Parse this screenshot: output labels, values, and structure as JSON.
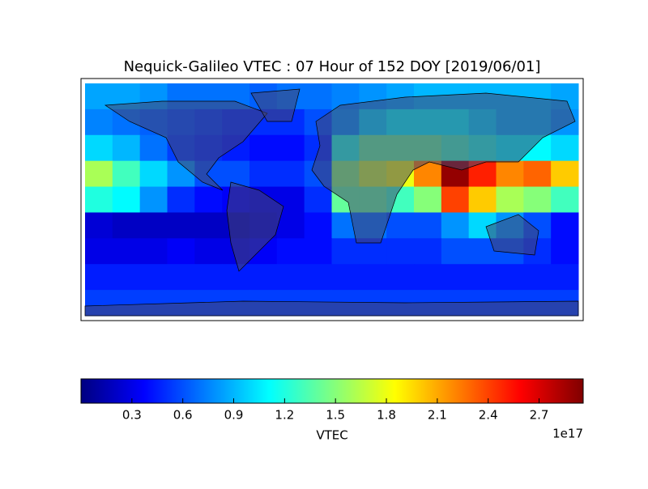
{
  "chart_data": {
    "type": "heatmap",
    "title": "Nequick-Galileo VTEC : 07 Hour of 152 DOY [2019/06/01]",
    "colormap": "jet",
    "values": [
      [
        0.85,
        0.85,
        0.8,
        0.7,
        0.7,
        0.7,
        0.65,
        0.7,
        0.7,
        0.75,
        0.8,
        0.85,
        0.9,
        0.9,
        0.9,
        0.9,
        0.9,
        0.85
      ],
      [
        0.75,
        0.7,
        0.65,
        0.6,
        0.55,
        0.5,
        0.5,
        0.5,
        0.6,
        0.8,
        1.0,
        1.1,
        1.1,
        1.1,
        1.0,
        0.9,
        0.9,
        0.8
      ],
      [
        1.0,
        0.9,
        0.7,
        0.55,
        0.5,
        0.45,
        0.4,
        0.4,
        0.5,
        1.2,
        1.4,
        1.4,
        1.4,
        1.3,
        1.2,
        1.1,
        1.1,
        1.0
      ],
      [
        1.6,
        1.3,
        1.0,
        0.8,
        0.6,
        0.6,
        0.5,
        0.5,
        0.6,
        1.5,
        1.7,
        1.8,
        2.2,
        2.9,
        2.5,
        2.2,
        2.3,
        2.0
      ],
      [
        1.2,
        1.1,
        0.8,
        0.5,
        0.4,
        0.35,
        0.3,
        0.3,
        0.5,
        1.4,
        1.4,
        1.3,
        1.5,
        2.4,
        2.0,
        1.6,
        1.5,
        1.3
      ],
      [
        0.25,
        0.2,
        0.2,
        0.2,
        0.2,
        0.2,
        0.25,
        0.3,
        0.4,
        0.7,
        0.7,
        0.6,
        0.6,
        0.8,
        1.0,
        0.8,
        0.6,
        0.4
      ],
      [
        0.3,
        0.3,
        0.3,
        0.35,
        0.3,
        0.3,
        0.35,
        0.4,
        0.4,
        0.5,
        0.5,
        0.5,
        0.5,
        0.6,
        0.6,
        0.6,
        0.5,
        0.4
      ],
      [
        0.45,
        0.45,
        0.45,
        0.45,
        0.45,
        0.45,
        0.45,
        0.45,
        0.45,
        0.45,
        0.45,
        0.45,
        0.45,
        0.45,
        0.45,
        0.45,
        0.45,
        0.45
      ],
      [
        0.55,
        0.55,
        0.55,
        0.55,
        0.55,
        0.55,
        0.55,
        0.55,
        0.55,
        0.55,
        0.55,
        0.55,
        0.55,
        0.55,
        0.55,
        0.55,
        0.55,
        0.55
      ]
    ],
    "clim": [
      0,
      2.96
    ],
    "cticks": [
      0.3,
      0.6,
      0.9,
      1.2,
      1.5,
      1.8,
      2.1,
      2.4,
      2.7
    ],
    "clabel": "VTEC",
    "offset_label": "1e17"
  }
}
